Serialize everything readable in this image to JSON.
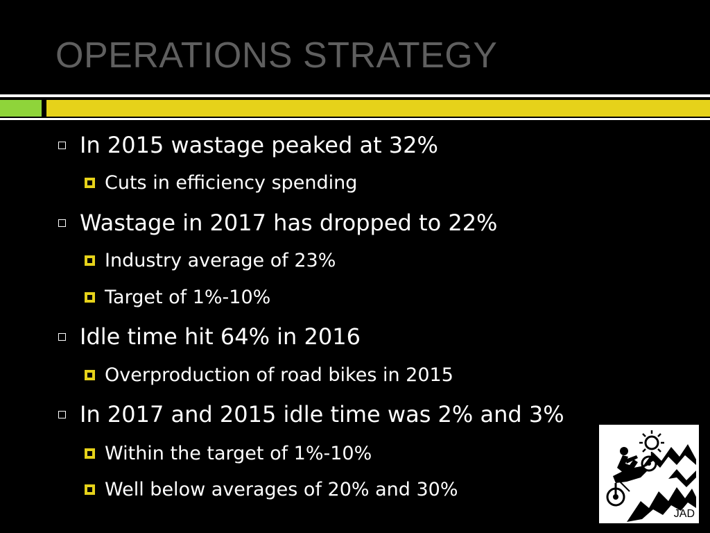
{
  "slide": {
    "title": "OPERATIONS STRATEGY",
    "colors": {
      "background": "#000000",
      "title": "#5f5f5f",
      "accent_green": "#8fd43a",
      "accent_yellow": "#e6d21a"
    },
    "bullets": [
      {
        "text": "In 2015 wastage peaked at 32%",
        "sub": [
          "Cuts in efficiency spending"
        ]
      },
      {
        "text": "Wastage in 2017  has dropped to 22%",
        "sub": [
          "Industry average of 23%",
          "Target of 1%-10%"
        ]
      },
      {
        "text": "Idle time hit 64% in 2016",
        "sub": [
          "Overproduction of road bikes in 2015"
        ]
      },
      {
        "text": "In 2017 and 2015 idle time was 2% and 3%",
        "sub": [
          "Within the target of 1%-10%",
          "Well below averages of 20% and 30%"
        ]
      }
    ],
    "logo": {
      "text": "JAD",
      "icon": "motorcycle-rider-logo"
    }
  }
}
